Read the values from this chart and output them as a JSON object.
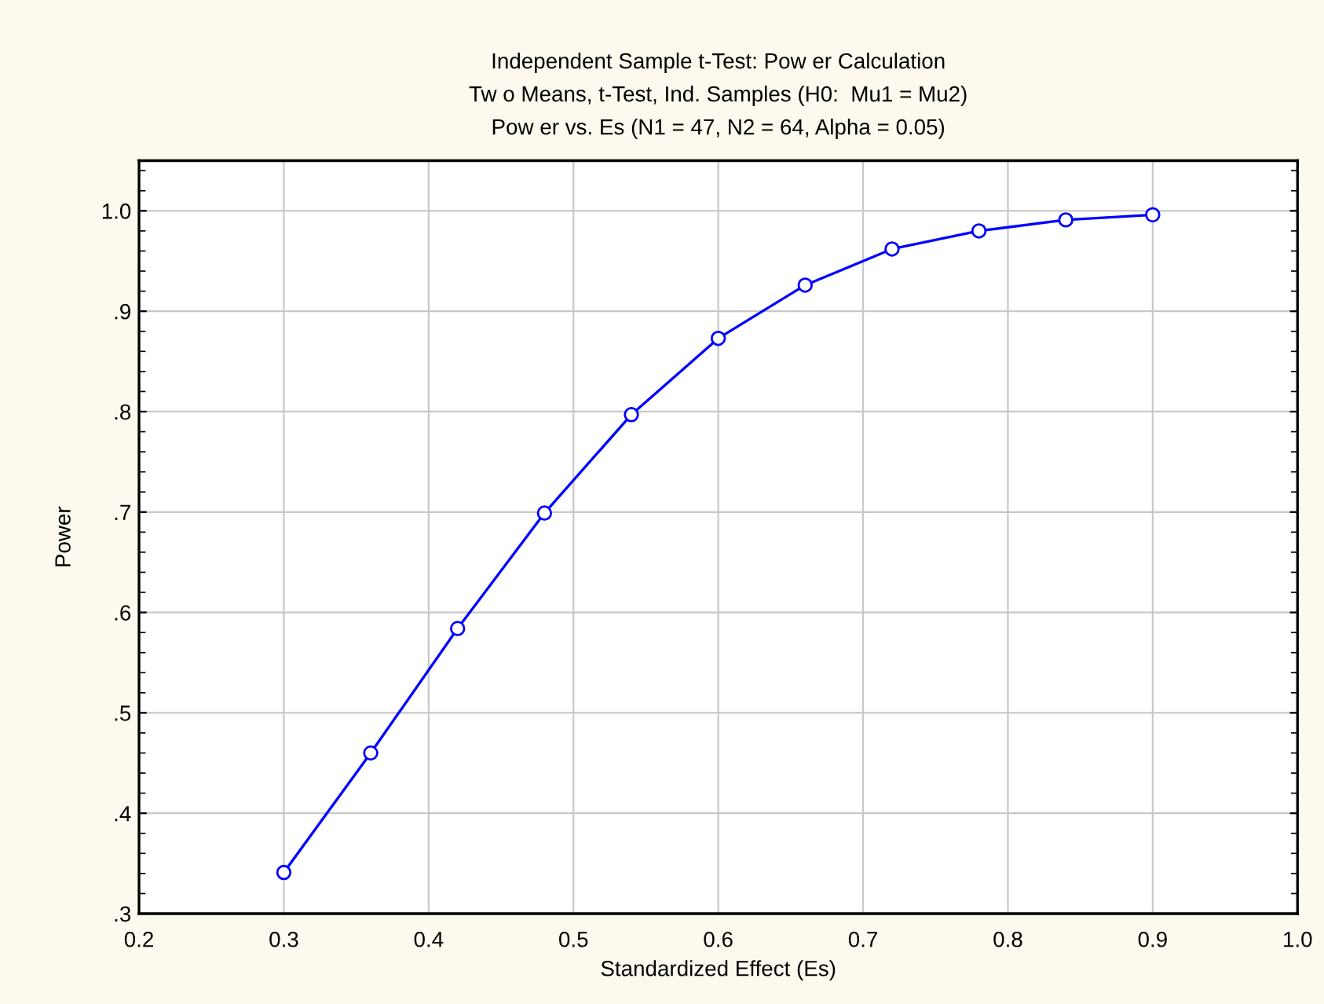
{
  "chart_data": {
    "type": "line",
    "title": "Independent Sample t-Test: Pow er Calculation\nTw o Means, t-Test, Ind. Samples (H0:  Mu1 = Mu2)\nPow er vs. Es (N1 = 47, N2 = 64, Alpha = 0.05)",
    "xlabel": "Standardized Effect (Es)",
    "ylabel": "Power",
    "x": [
      0.3,
      0.36,
      0.42,
      0.48,
      0.54,
      0.6,
      0.66,
      0.72,
      0.78,
      0.84,
      0.9
    ],
    "series": [
      {
        "color": "#0000ff",
        "values": [
          0.341,
          0.46,
          0.584,
          0.699,
          0.797,
          0.873,
          0.926,
          0.962,
          0.98,
          0.991,
          0.996
        ]
      }
    ],
    "xlim": [
      0.2,
      1.0
    ],
    "xticks": [
      {
        "value": 0.2,
        "label": "0.2"
      },
      {
        "value": 0.3,
        "label": "0.3"
      },
      {
        "value": 0.4,
        "label": "0.4"
      },
      {
        "value": 0.5,
        "label": "0.5"
      },
      {
        "value": 0.6,
        "label": "0.6"
      },
      {
        "value": 0.7,
        "label": "0.7"
      },
      {
        "value": 0.8,
        "label": "0.8"
      },
      {
        "value": 0.9,
        "label": "0.9"
      },
      {
        "value": 1.0,
        "label": "1.0"
      }
    ],
    "ylim": [
      0.3,
      1.05
    ],
    "yticks": [
      {
        "value": 0.3,
        "label": ".3"
      },
      {
        "value": 0.4,
        "label": ".4"
      },
      {
        "value": 0.5,
        "label": ".5"
      },
      {
        "value": 0.6,
        "label": ".6"
      },
      {
        "value": 0.7,
        "label": ".7"
      },
      {
        "value": 0.8,
        "label": ".8"
      },
      {
        "value": 0.9,
        "label": ".9"
      },
      {
        "value": 1.0,
        "label": "1.0"
      }
    ],
    "grid": true,
    "marker": "circle",
    "line_style": "solid"
  }
}
